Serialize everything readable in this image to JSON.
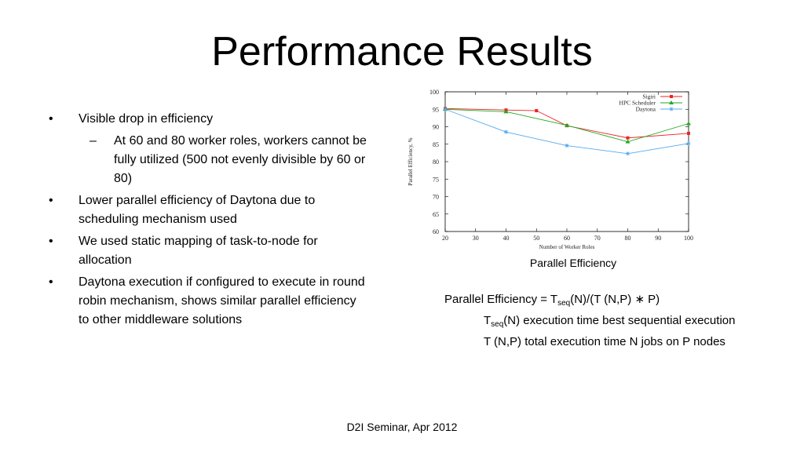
{
  "slide": {
    "title": "Performance Results",
    "footer": "D2I Seminar, Apr 2012"
  },
  "bullets": [
    {
      "text": "Visible drop in efficiency"
    },
    {
      "text": "At 60 and 80 worker roles, workers cannot be fully utilized (500 not evenly divisible by 60 or 80)"
    },
    {
      "text": "Lower parallel efficiency of Daytona due to scheduling mechanism used"
    },
    {
      "text": "We used static mapping of task-to-node  for allocation"
    },
    {
      "text": "Daytona execution if configured to execute in round robin mechanism, shows similar parallel efficiency to other middleware solutions"
    }
  ],
  "bullet_marker": "•",
  "sub_marker": "–",
  "caption": "Parallel Efficiency",
  "formula": {
    "line1_prefix": "Parallel Efficiency = T",
    "seq_sub": "seq",
    "line1_suffix": "(N)/(T (N,P) ∗ P)",
    "def1_prefix": "T",
    "def1_suffix": "(N) execution time best sequential execution",
    "def2": "T (N,P) total execution time N jobs on P nodes"
  },
  "chart_data": {
    "type": "line",
    "xlabel": "Number of Worker Roles",
    "ylabel": "Parallel Efficiency, %",
    "xlim": [
      20,
      100
    ],
    "ylim": [
      60,
      100
    ],
    "xticks": [
      20,
      30,
      40,
      50,
      60,
      70,
      80,
      90,
      100
    ],
    "yticks": [
      60,
      65,
      70,
      75,
      80,
      85,
      90,
      95,
      100
    ],
    "legend_position": "top-right",
    "grid": false,
    "series": [
      {
        "name": "Sigiri",
        "color": "#ee2222",
        "marker": "square",
        "x": [
          20,
          40,
          50,
          60,
          80,
          100
        ],
        "y": [
          95.2,
          94.8,
          94.6,
          90.3,
          86.8,
          88.1
        ]
      },
      {
        "name": "HPC Scheduler",
        "color": "#22aa22",
        "marker": "triangle",
        "x": [
          20,
          40,
          60,
          80,
          100
        ],
        "y": [
          95.0,
          94.3,
          90.4,
          85.7,
          90.9
        ]
      },
      {
        "name": "Daytona",
        "color": "#55aaee",
        "marker": "star",
        "x": [
          20,
          40,
          60,
          80,
          100
        ],
        "y": [
          95.0,
          88.5,
          84.6,
          82.3,
          85.2
        ]
      }
    ]
  }
}
